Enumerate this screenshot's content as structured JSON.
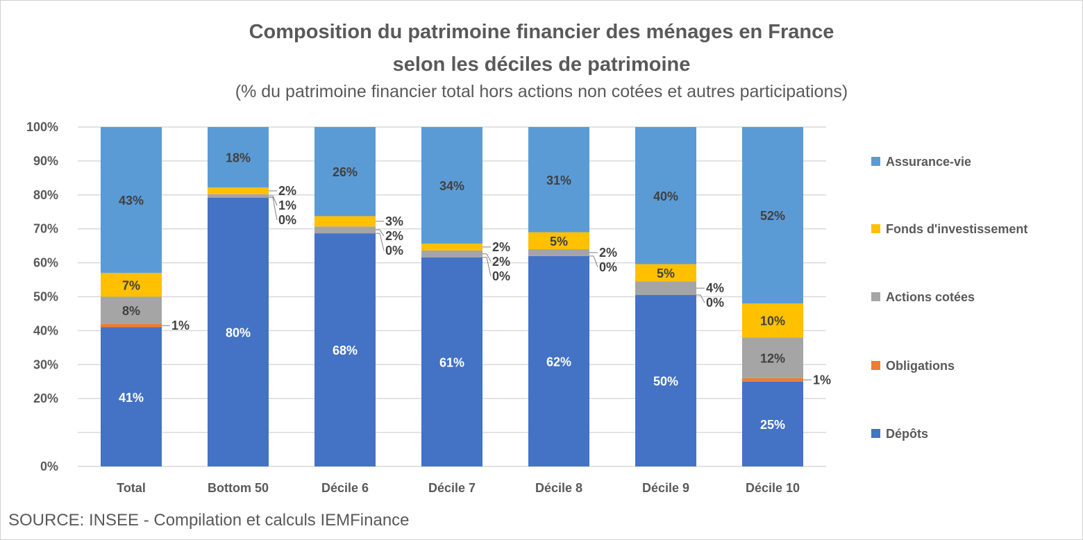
{
  "chart_data": {
    "type": "bar",
    "stacked": "percent",
    "title": "Composition du patrimoine financier des ménages en France",
    "title_line2": "selon les déciles de patrimoine",
    "subtitle": "(% du patrimoine financier total hors actions non cotées et autres participations)",
    "source": "SOURCE: INSEE - Compilation et calculs IEMFinance",
    "categories": [
      "Total",
      "Bottom 50",
      "Décile 6",
      "Décile 7",
      "Décile 8",
      "Décile 9",
      "Décile 10"
    ],
    "ylim": [
      0,
      100
    ],
    "y_ticks": [
      "0%",
      "",
      "20%",
      "30%",
      "40%",
      "50%",
      "60%",
      "70%",
      "80%",
      "90%",
      "100%"
    ],
    "grid": true,
    "legend_position": "right",
    "series": [
      {
        "name": "Dépôts",
        "color": "#4472C4",
        "label_color": "#ffffff",
        "values": [
          41,
          80,
          68,
          61,
          62,
          50,
          25
        ]
      },
      {
        "name": "Obligations",
        "color": "#ED7D31",
        "label_color": "#404040",
        "values": [
          1,
          0,
          0,
          0,
          0,
          0,
          1
        ]
      },
      {
        "name": "Actions cotées",
        "color": "#A5A5A5",
        "label_color": "#404040",
        "values": [
          8,
          1,
          2,
          2,
          2,
          4,
          12
        ]
      },
      {
        "name": "Fonds d'investissement",
        "color": "#FFC000",
        "label_color": "#404040",
        "values": [
          7,
          2,
          3,
          2,
          5,
          5,
          10
        ]
      },
      {
        "name": "Assurance-vie",
        "color": "#5B9BD5",
        "label_color": "#404040",
        "values": [
          43,
          18,
          26,
          34,
          31,
          40,
          52
        ]
      }
    ]
  }
}
